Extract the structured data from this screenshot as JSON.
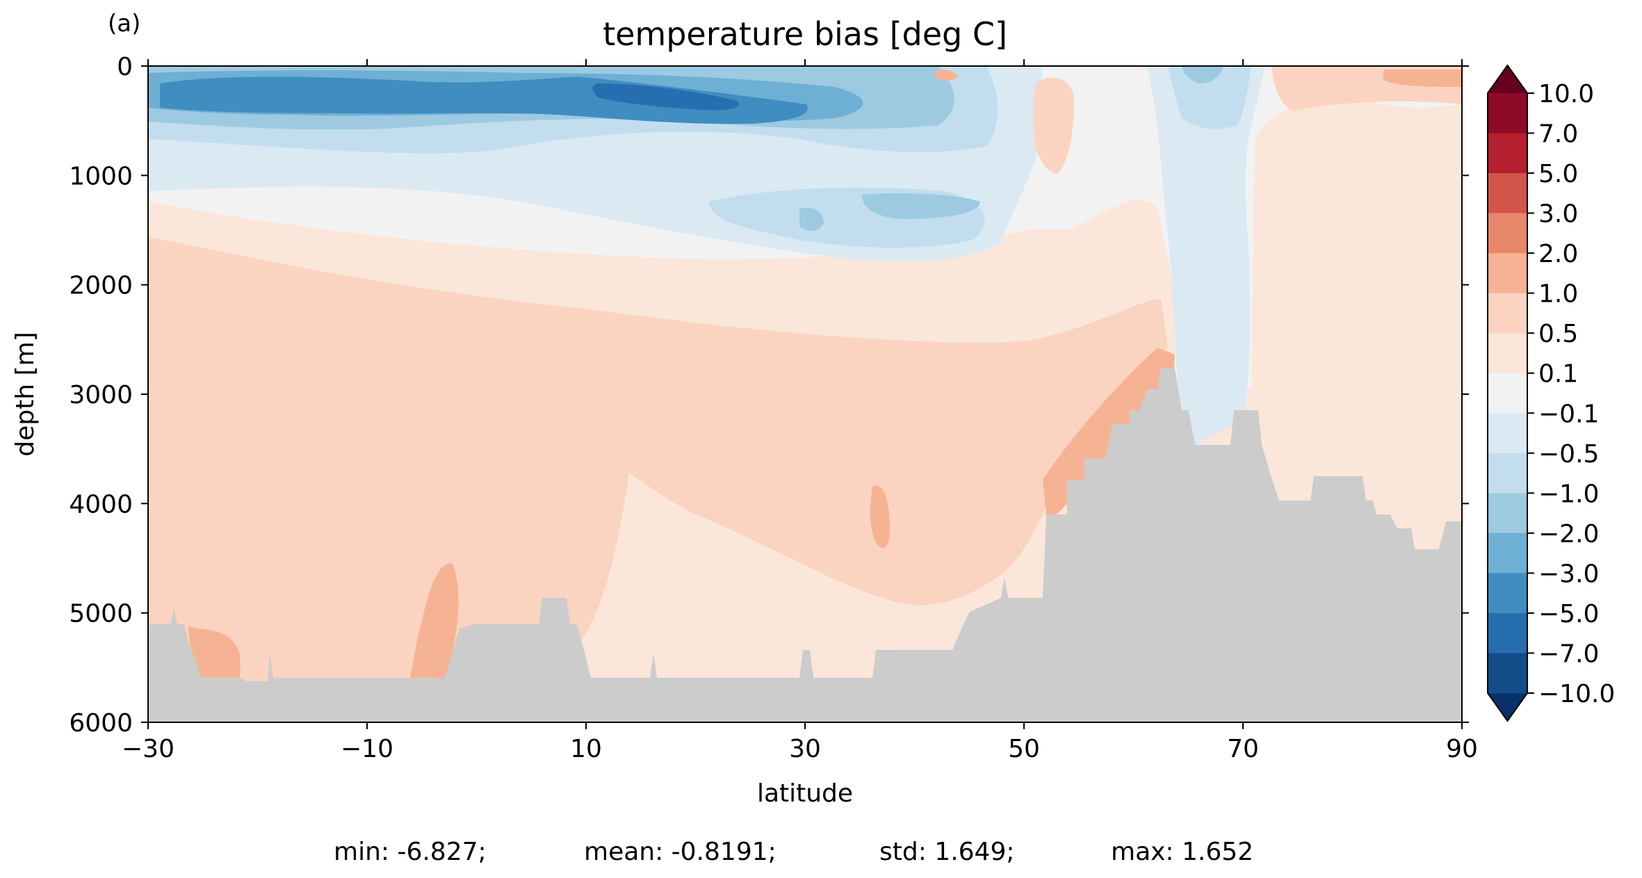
{
  "panel_label": "(a)",
  "chart_data": {
    "type": "heatmap",
    "title": "temperature bias [deg C]",
    "xlabel": "latitude",
    "ylabel": "depth [m]",
    "xlim": [
      -30,
      90
    ],
    "ylim": [
      6000,
      0
    ],
    "x_ticks": [
      -30,
      -10,
      10,
      30,
      50,
      70,
      90
    ],
    "x_tick_labels": [
      "−30",
      "−10",
      "10",
      "30",
      "50",
      "70",
      "90"
    ],
    "y_ticks": [
      0,
      1000,
      2000,
      3000,
      4000,
      5000,
      6000
    ],
    "y_tick_labels": [
      "0",
      "1000",
      "2000",
      "3000",
      "4000",
      "5000",
      "6000"
    ],
    "colorbar": {
      "boundaries": [
        10.0,
        7.0,
        5.0,
        3.0,
        2.0,
        1.0,
        0.5,
        0.1,
        -0.1,
        -0.5,
        -1.0,
        -2.0,
        -3.0,
        -5.0,
        -7.0,
        -10.0
      ],
      "labels": [
        "10.0",
        "7.0",
        "5.0",
        "3.0",
        "2.0",
        "1.0",
        "0.5",
        "0.1",
        "−0.1",
        "−0.5",
        "−1.0",
        "−2.0",
        "−3.0",
        "−5.0",
        "−7.0",
        "−10.0"
      ],
      "colors": [
        "#8e0a26",
        "#b5202e",
        "#d15449",
        "#e8876a",
        "#f6b394",
        "#fad4c0",
        "#fbe6da",
        "#f2f2f2",
        "#dbe9f3",
        "#c2ddee",
        "#9dcae1",
        "#6eafd4",
        "#3f8dc1",
        "#266eb0",
        "#124d8a"
      ],
      "over_color": "#67001f",
      "under_color": "#08306b"
    },
    "land_color": "#cccccc",
    "stats": {
      "min": "min: -6.827;",
      "mean": "mean: -0.8191;",
      "std": "std: 1.649;",
      "max": "max: 1.652"
    }
  }
}
